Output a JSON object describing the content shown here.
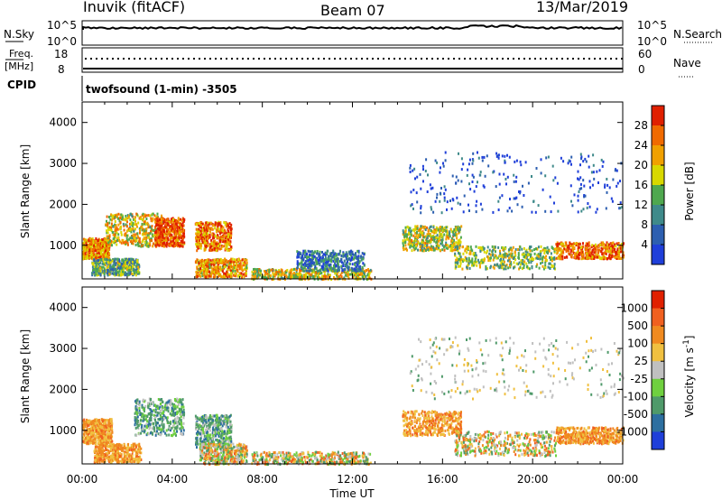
{
  "header": {
    "title": "Inuvik (fitACF)",
    "beam": "Beam 07",
    "date": "13/Mar/2019"
  },
  "status_panels": {
    "nsky_label": "N.Sky",
    "nsky_ticks": [
      "10^5",
      "10^0"
    ],
    "nsearch_label": "N.Search",
    "nsearch_ticks": [
      "10^5",
      "10^0"
    ],
    "freq_label_1": "Freq.",
    "freq_label_2": "[MHz]",
    "freq_ticks": [
      "18",
      "8"
    ],
    "nave_label": "Nave",
    "nave_ticks": [
      "60",
      "0"
    ],
    "cpid_label": "CPID",
    "cpid_text": "twofsound (1-min) -3505"
  },
  "chart_data": [
    {
      "type": "heatmap",
      "title": "",
      "ylabel": "Slant Range [km]",
      "ylim": [
        180,
        4500
      ],
      "yticks": [
        1000,
        2000,
        3000,
        4000
      ],
      "xlim": [
        "00:00",
        "24:00"
      ],
      "colorbar": {
        "label": "Power [dB]",
        "ticks": [
          4,
          8,
          12,
          16,
          20,
          24,
          28
        ],
        "range": [
          0,
          32
        ],
        "colors": [
          "#1f3fd9",
          "#2d5fb0",
          "#3f8a8a",
          "#4fa84f",
          "#d8d800",
          "#f0a000",
          "#f06a00",
          "#e02000"
        ]
      },
      "scatter_bands": [
        {
          "t": [
            0.0,
            1.2
          ],
          "r": [
            700,
            1200
          ],
          "level": 0.75
        },
        {
          "t": [
            0.4,
            2.5
          ],
          "r": [
            300,
            700
          ],
          "level": 0.4
        },
        {
          "t": [
            1.0,
            3.6
          ],
          "r": [
            1000,
            1800
          ],
          "level": 0.6
        },
        {
          "t": [
            3.2,
            4.5
          ],
          "r": [
            1000,
            1700
          ],
          "level": 0.85
        },
        {
          "t": [
            5.0,
            6.6
          ],
          "r": [
            900,
            1600
          ],
          "level": 0.8
        },
        {
          "t": [
            5.0,
            7.3
          ],
          "r": [
            250,
            700
          ],
          "level": 0.7
        },
        {
          "t": [
            7.5,
            12.8
          ],
          "r": [
            200,
            450
          ],
          "level": 0.6
        },
        {
          "t": [
            9.5,
            12.5
          ],
          "r": [
            400,
            900
          ],
          "level": 0.25
        },
        {
          "t": [
            14.2,
            16.8
          ],
          "r": [
            900,
            1500
          ],
          "level": 0.55
        },
        {
          "t": [
            16.5,
            21.0
          ],
          "r": [
            450,
            1000
          ],
          "level": 0.5
        },
        {
          "t": [
            21.0,
            24.0
          ],
          "r": [
            700,
            1100
          ],
          "level": 0.8
        },
        {
          "t": [
            14.5,
            24.0
          ],
          "r": [
            1800,
            3300
          ],
          "level": 0.1
        }
      ]
    },
    {
      "type": "heatmap",
      "title": "",
      "ylabel": "Slant Range [km]",
      "ylim": [
        180,
        4500
      ],
      "yticks": [
        1000,
        2000,
        3000,
        4000
      ],
      "xlabel": "Time UT",
      "xticks": [
        "00:00",
        "04:00",
        "08:00",
        "12:00",
        "16:00",
        "20:00",
        "00:00"
      ],
      "colorbar": {
        "label": "Velocity [m s^-1]",
        "ticks": [
          "1000",
          "500",
          "100",
          "25",
          "-25",
          "-100",
          "-500",
          "-1000"
        ],
        "colors": [
          "#1f3fd9",
          "#2d6fa0",
          "#4f9a6a",
          "#6fd03f",
          "#c0c0c0",
          "#f0c040",
          "#f08a20",
          "#f06020",
          "#e02000"
        ]
      },
      "scatter_bands": [
        {
          "t": [
            0.0,
            1.3
          ],
          "r": [
            700,
            1300
          ],
          "color": "orange"
        },
        {
          "t": [
            0.5,
            2.6
          ],
          "r": [
            250,
            700
          ],
          "color": "orange"
        },
        {
          "t": [
            2.3,
            4.5
          ],
          "r": [
            900,
            1800
          ],
          "color": "green"
        },
        {
          "t": [
            5.0,
            6.6
          ],
          "r": [
            600,
            1400
          ],
          "color": "green"
        },
        {
          "t": [
            5.2,
            7.3
          ],
          "r": [
            200,
            700
          ],
          "color": "mixed"
        },
        {
          "t": [
            7.5,
            12.8
          ],
          "r": [
            200,
            500
          ],
          "color": "mixed"
        },
        {
          "t": [
            14.2,
            16.8
          ],
          "r": [
            900,
            1500
          ],
          "color": "orange"
        },
        {
          "t": [
            16.5,
            21.0
          ],
          "r": [
            400,
            1000
          ],
          "color": "mixed"
        },
        {
          "t": [
            21.0,
            24.0
          ],
          "r": [
            700,
            1100
          ],
          "color": "orange"
        },
        {
          "t": [
            14.5,
            24.0
          ],
          "r": [
            1800,
            3300
          ],
          "color": "sparse"
        }
      ]
    }
  ]
}
